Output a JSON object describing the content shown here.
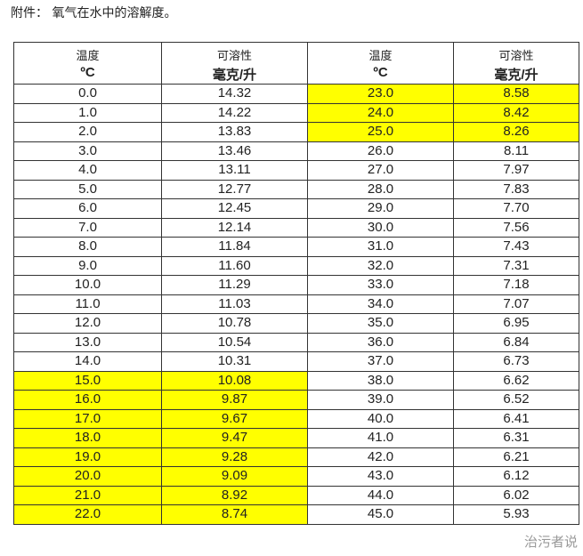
{
  "title": "附件： 氧气在水中的溶解度。",
  "headers": [
    {
      "l1": "温度",
      "l2": "ºC"
    },
    {
      "l1": "可溶性",
      "l2": "毫克/升"
    },
    {
      "l1": "温度",
      "l2": "ºC"
    },
    {
      "l1": "可溶性",
      "l2": "毫克/升"
    }
  ],
  "highlight_color": "#ffff00",
  "rows": [
    [
      "0.0",
      "14.32",
      "23.0",
      "8.58"
    ],
    [
      "1.0",
      "14.22",
      "24.0",
      "8.42"
    ],
    [
      "2.0",
      "13.83",
      "25.0",
      "8.26"
    ],
    [
      "3.0",
      "13.46",
      "26.0",
      "8.11"
    ],
    [
      "4.0",
      "13.11",
      "27.0",
      "7.97"
    ],
    [
      "5.0",
      "12.77",
      "28.0",
      "7.83"
    ],
    [
      "6.0",
      "12.45",
      "29.0",
      "7.70"
    ],
    [
      "7.0",
      "12.14",
      "30.0",
      "7.56"
    ],
    [
      "8.0",
      "11.84",
      "31.0",
      "7.43"
    ],
    [
      "9.0",
      "11.60",
      "32.0",
      "7.31"
    ],
    [
      "10.0",
      "11.29",
      "33.0",
      "7.18"
    ],
    [
      "11.0",
      "11.03",
      "34.0",
      "7.07"
    ],
    [
      "12.0",
      "10.78",
      "35.0",
      "6.95"
    ],
    [
      "13.0",
      "10.54",
      "36.0",
      "6.84"
    ],
    [
      "14.0",
      "10.31",
      "37.0",
      "6.73"
    ],
    [
      "15.0",
      "10.08",
      "38.0",
      "6.62"
    ],
    [
      "16.0",
      "9.87",
      "39.0",
      "6.52"
    ],
    [
      "17.0",
      "9.67",
      "40.0",
      "6.41"
    ],
    [
      "18.0",
      "9.47",
      "41.0",
      "6.31"
    ],
    [
      "19.0",
      "9.28",
      "42.0",
      "6.21"
    ],
    [
      "20.0",
      "9.09",
      "43.0",
      "6.12"
    ],
    [
      "21.0",
      "8.92",
      "44.0",
      "6.02"
    ],
    [
      "22.0",
      "8.74",
      "45.0",
      "5.93"
    ]
  ],
  "highlight_left_rows_from": 15,
  "highlight_right_rows_to": 2,
  "watermark": "治污者说"
}
